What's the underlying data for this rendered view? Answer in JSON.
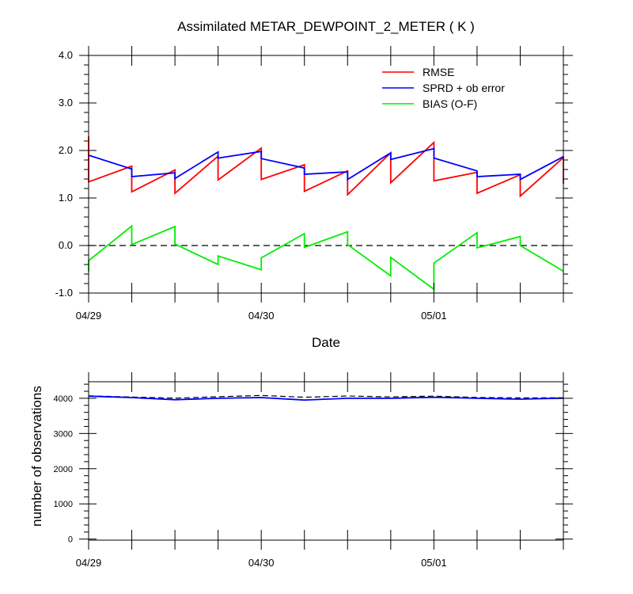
{
  "chart_data": [
    {
      "type": "line",
      "title": "Assimilated METAR_DEWPOINT_2_METER ( K )",
      "xlabel": "Date",
      "ylabel": "",
      "xlim": [
        0,
        3.3
      ],
      "ylim": [
        -1.0,
        4.0
      ],
      "x_tick_labels": [
        {
          "x": 0,
          "label": "04/29"
        },
        {
          "x": 1.2,
          "label": "04/30"
        },
        {
          "x": 2.4,
          "label": "05/01"
        }
      ],
      "y_tick_labels": [
        {
          "y": -1.0,
          "label": "-1.0"
        },
        {
          "y": 0.0,
          "label": "0.0"
        },
        {
          "y": 1.0,
          "label": "1.0"
        },
        {
          "y": 2.0,
          "label": "2.0"
        },
        {
          "y": 3.0,
          "label": "3.0"
        },
        {
          "y": 4.0,
          "label": "4.0"
        }
      ],
      "reference_line": {
        "y": 0.0,
        "style": "dashed",
        "color": "#000000"
      },
      "legend_placement": "top-right",
      "series": [
        {
          "name": "RMSE",
          "color": "#ff0000",
          "points": [
            [
              0.0,
              2.3
            ],
            [
              0.0,
              1.34
            ],
            [
              0.3,
              1.67
            ],
            [
              0.3,
              1.13
            ],
            [
              0.6,
              1.59
            ],
            [
              0.6,
              1.1
            ],
            [
              0.9,
              1.88
            ],
            [
              0.9,
              1.38
            ],
            [
              1.2,
              2.05
            ],
            [
              1.2,
              1.39
            ],
            [
              1.5,
              1.7
            ],
            [
              1.5,
              1.14
            ],
            [
              1.8,
              1.57
            ],
            [
              1.8,
              1.07
            ],
            [
              2.1,
              1.95
            ],
            [
              2.1,
              1.32
            ],
            [
              2.4,
              2.17
            ],
            [
              2.4,
              1.36
            ],
            [
              2.7,
              1.54
            ],
            [
              2.7,
              1.1
            ],
            [
              3.0,
              1.49
            ],
            [
              3.0,
              1.04
            ],
            [
              3.3,
              1.85
            ],
            [
              3.3,
              1.3
            ]
          ]
        },
        {
          "name": "SPRD + ob error",
          "color": "#0000ff",
          "points": [
            [
              0.0,
              1.9
            ],
            [
              0.3,
              1.61
            ],
            [
              0.3,
              1.45
            ],
            [
              0.6,
              1.53
            ],
            [
              0.6,
              1.41
            ],
            [
              0.9,
              1.97
            ],
            [
              0.9,
              1.84
            ],
            [
              1.2,
              1.98
            ],
            [
              1.2,
              1.83
            ],
            [
              1.5,
              1.63
            ],
            [
              1.5,
              1.5
            ],
            [
              1.8,
              1.55
            ],
            [
              1.8,
              1.39
            ],
            [
              2.1,
              1.95
            ],
            [
              2.1,
              1.81
            ],
            [
              2.4,
              2.04
            ],
            [
              2.4,
              1.84
            ],
            [
              2.7,
              1.57
            ],
            [
              2.7,
              1.45
            ],
            [
              3.0,
              1.5
            ],
            [
              3.0,
              1.39
            ],
            [
              3.3,
              1.87
            ]
          ]
        },
        {
          "name": "BIAS (O-F)",
          "color": "#00ee00",
          "points": [
            [
              0.0,
              -0.55
            ],
            [
              0.0,
              -0.32
            ],
            [
              0.3,
              0.41
            ],
            [
              0.3,
              0.02
            ],
            [
              0.6,
              0.4
            ],
            [
              0.6,
              0.03
            ],
            [
              0.9,
              -0.4
            ],
            [
              0.9,
              -0.22
            ],
            [
              1.2,
              -0.51
            ],
            [
              1.2,
              -0.26
            ],
            [
              1.5,
              0.25
            ],
            [
              1.5,
              -0.04
            ],
            [
              1.8,
              0.29
            ],
            [
              1.8,
              0.02
            ],
            [
              2.1,
              -0.64
            ],
            [
              2.1,
              -0.25
            ],
            [
              2.4,
              -0.92
            ],
            [
              2.4,
              -0.37
            ],
            [
              2.7,
              0.27
            ],
            [
              2.7,
              -0.05
            ],
            [
              3.0,
              0.19
            ],
            [
              3.0,
              0.0
            ],
            [
              3.3,
              -0.54
            ]
          ]
        }
      ]
    },
    {
      "type": "line",
      "title": "",
      "xlabel": "",
      "ylabel": "number of observations",
      "xlim": [
        0,
        3.3
      ],
      "ylim": [
        -30,
        4470
      ],
      "x_tick_labels": [
        {
          "x": 0,
          "label": "04/29"
        },
        {
          "x": 1.2,
          "label": "04/30"
        },
        {
          "x": 2.4,
          "label": "05/01"
        }
      ],
      "y_tick_labels": [
        {
          "y": 0,
          "label": "0"
        },
        {
          "y": 1000,
          "label": "1000"
        },
        {
          "y": 2000,
          "label": "2000"
        },
        {
          "y": 3000,
          "label": "3000"
        },
        {
          "y": 4000,
          "label": "4000"
        }
      ],
      "series": [
        {
          "color": "#000000",
          "style": "dashed",
          "points": [
            [
              0.0,
              4070
            ],
            [
              0.3,
              4035
            ],
            [
              0.6,
              4005
            ],
            [
              0.9,
              4045
            ],
            [
              1.2,
              4080
            ],
            [
              1.5,
              4030
            ],
            [
              1.8,
              4065
            ],
            [
              2.1,
              4040
            ],
            [
              2.4,
              4060
            ],
            [
              2.7,
              4025
            ],
            [
              3.0,
              4010
            ],
            [
              3.3,
              4015
            ]
          ]
        },
        {
          "color": "#0000ff",
          "style": "solid",
          "points": [
            [
              0.0,
              4060
            ],
            [
              0.3,
              4020
            ],
            [
              0.6,
              3960
            ],
            [
              0.9,
              4000
            ],
            [
              1.2,
              4020
            ],
            [
              1.5,
              3950
            ],
            [
              1.8,
              4000
            ],
            [
              2.1,
              4000
            ],
            [
              2.4,
              4030
            ],
            [
              2.7,
              4000
            ],
            [
              3.0,
              3975
            ],
            [
              3.3,
              4005
            ]
          ]
        }
      ]
    }
  ]
}
